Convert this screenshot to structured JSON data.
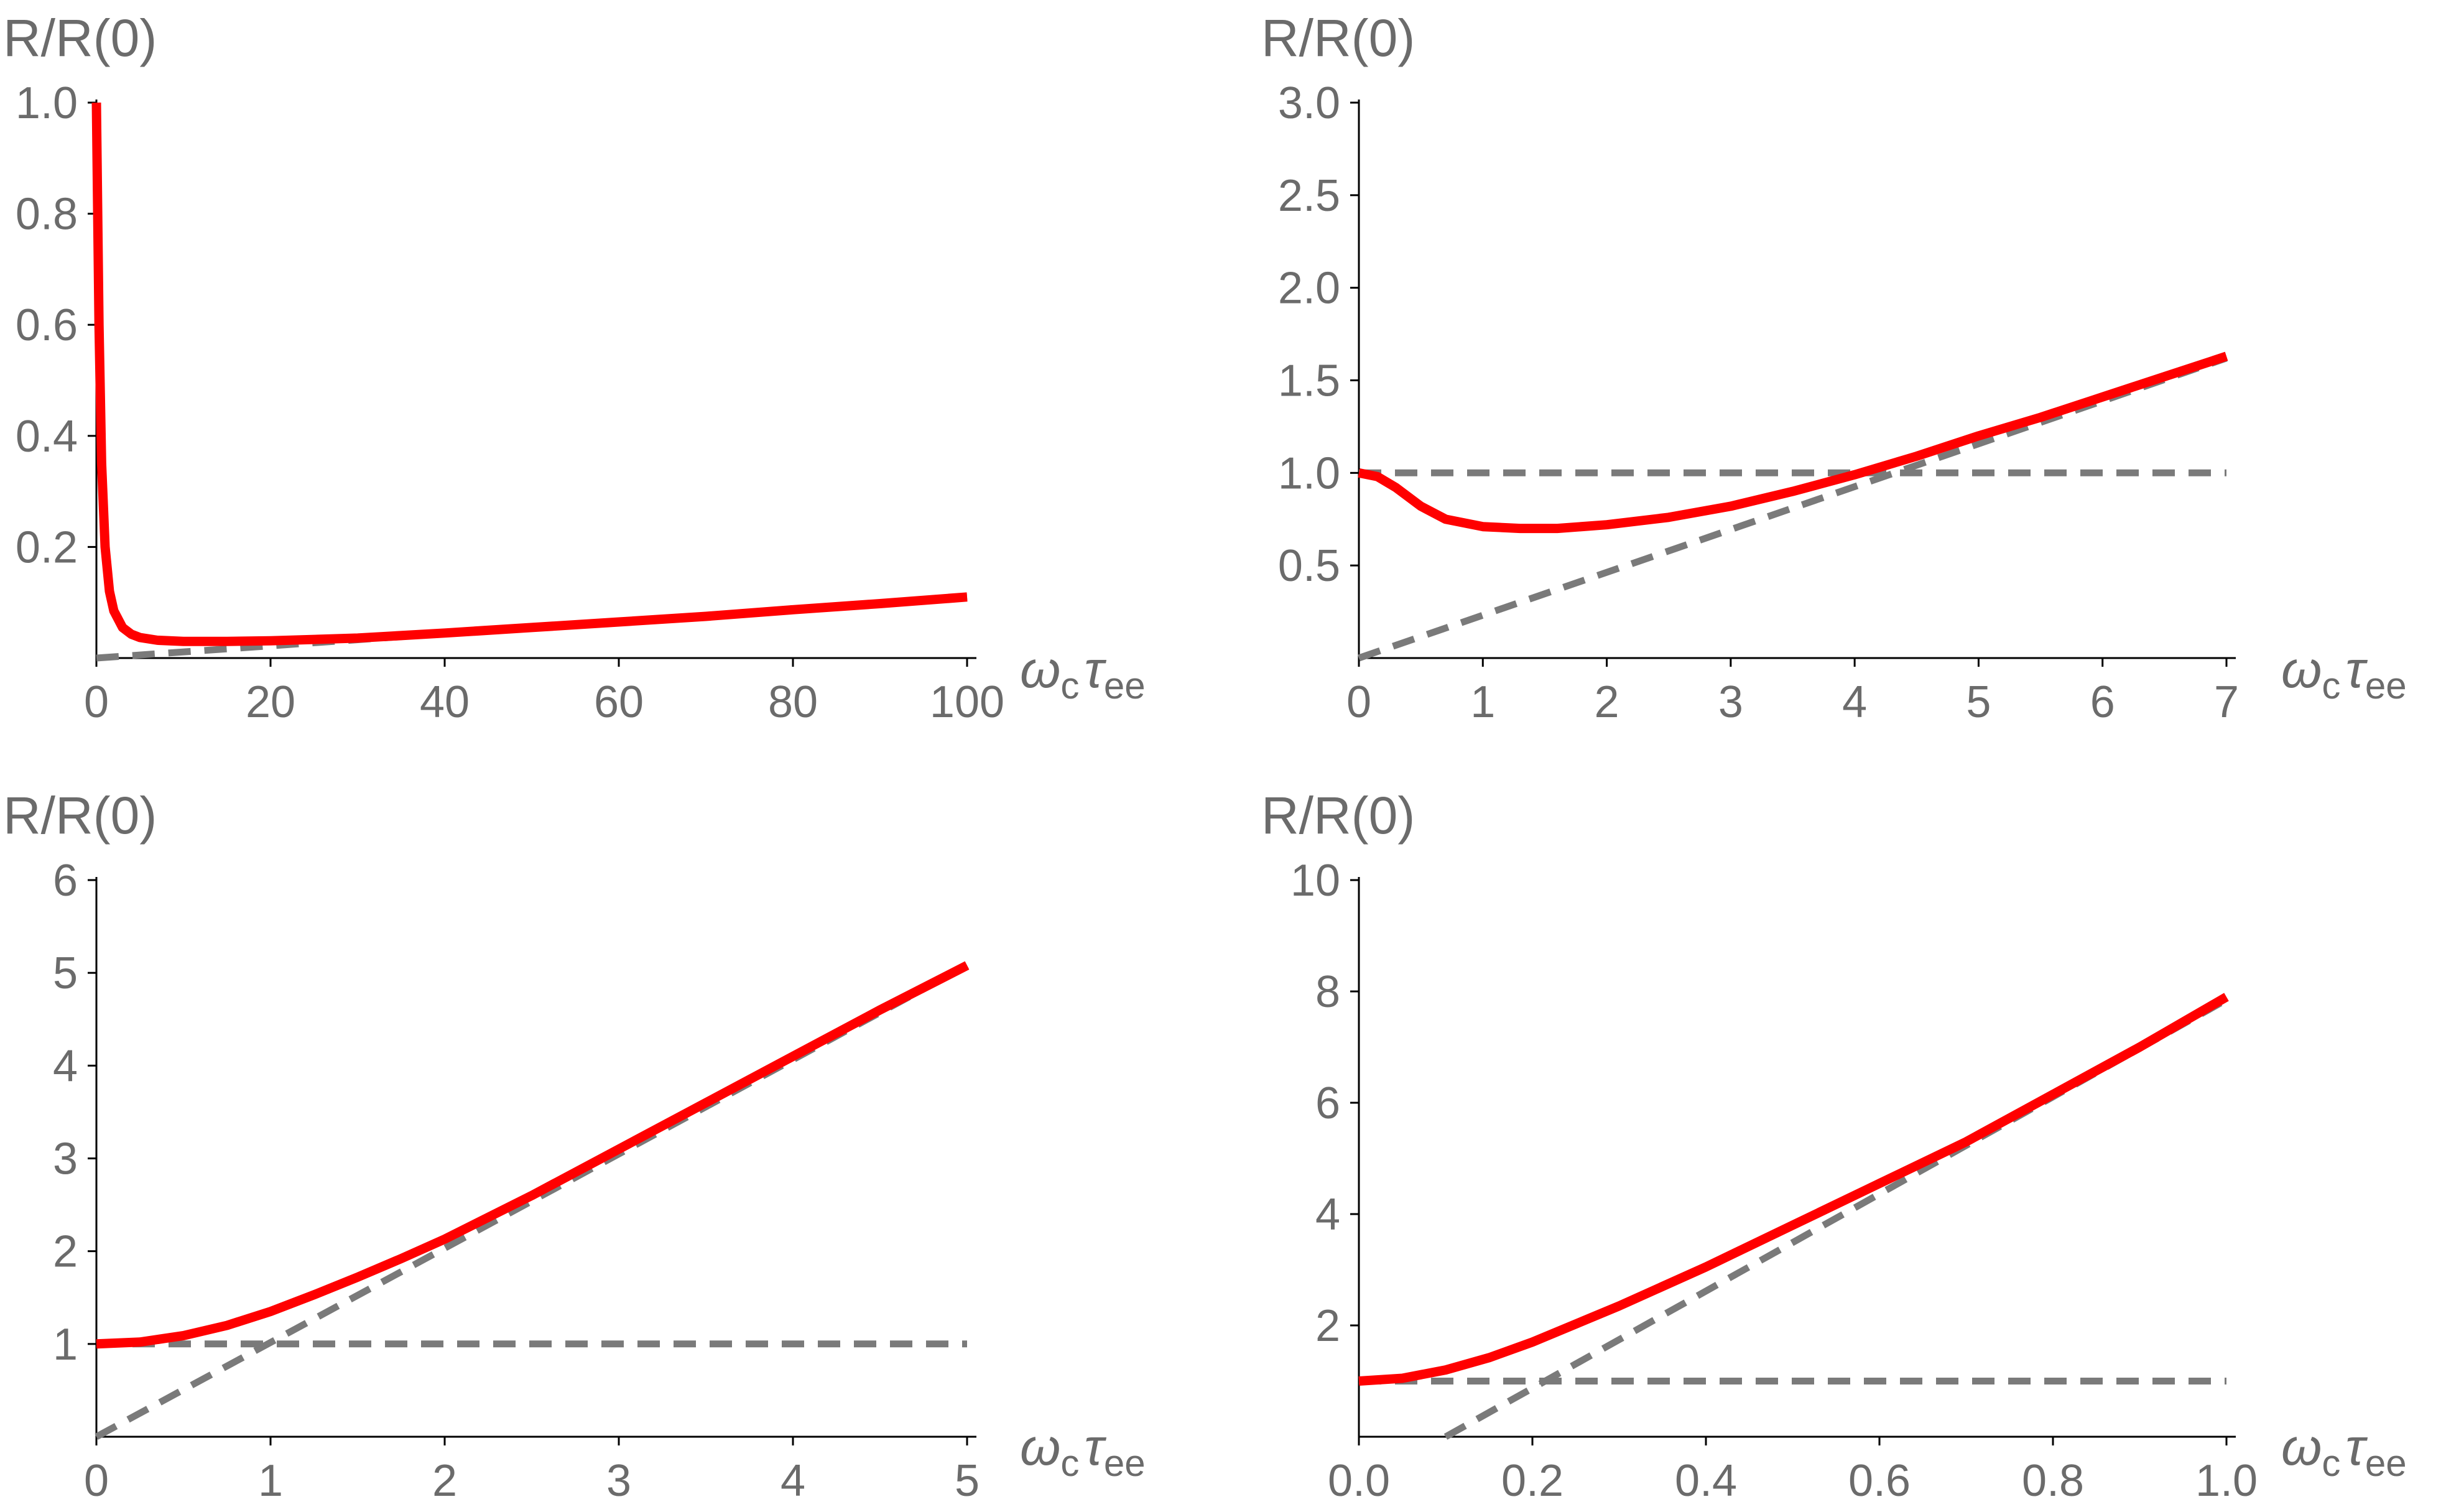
{
  "chart_data": [
    {
      "type": "line",
      "ylabel": "R/R(0)",
      "xlabel": {
        "sym1": "ω",
        "sub1": "c",
        "sym2": "τ",
        "sub2": "ee"
      },
      "xlim": [
        0,
        100
      ],
      "ylim": [
        0,
        1.0
      ],
      "xticks": [
        "0",
        "20",
        "40",
        "60",
        "80",
        "100"
      ],
      "xtick_values": [
        0,
        20,
        40,
        60,
        80,
        100
      ],
      "yticks": [
        "0.2",
        "0.4",
        "0.6",
        "0.8",
        "1.0"
      ],
      "ytick_values": [
        0.2,
        0.4,
        0.6,
        0.8,
        1.0
      ],
      "series": [
        {
          "name": "R/R(0)",
          "style": "solid",
          "color": "#ff0000",
          "x": [
            0,
            0.3,
            0.6,
            1,
            1.5,
            2,
            3,
            4,
            5,
            7,
            10,
            15,
            20,
            30,
            40,
            50,
            60,
            70,
            80,
            90,
            100
          ],
          "values": [
            1.0,
            0.6,
            0.35,
            0.2,
            0.12,
            0.085,
            0.055,
            0.043,
            0.037,
            0.032,
            0.03,
            0.03,
            0.031,
            0.036,
            0.045,
            0.055,
            0.065,
            0.075,
            0.087,
            0.098,
            0.11
          ]
        },
        {
          "name": "asymptote",
          "style": "dashed",
          "color": "#7a7a7a",
          "x": [
            0,
            100
          ],
          "values": [
            0,
            0.11
          ]
        }
      ]
    },
    {
      "type": "line",
      "ylabel": "R/R(0)",
      "xlabel": {
        "sym1": "ω",
        "sub1": "c",
        "sym2": "τ",
        "sub2": "ee"
      },
      "xlim": [
        0,
        7
      ],
      "ylim": [
        0,
        3.0
      ],
      "xticks": [
        "0",
        "1",
        "2",
        "3",
        "4",
        "5",
        "6",
        "7"
      ],
      "xtick_values": [
        0,
        1,
        2,
        3,
        4,
        5,
        6,
        7
      ],
      "yticks": [
        "0.5",
        "1.0",
        "1.5",
        "2.0",
        "2.5",
        "3.0"
      ],
      "ytick_values": [
        0.5,
        1.0,
        1.5,
        2.0,
        2.5,
        3.0
      ],
      "series": [
        {
          "name": "R/R(0)",
          "style": "solid",
          "color": "#ff0000",
          "x": [
            0,
            0.15,
            0.3,
            0.5,
            0.7,
            1.0,
            1.3,
            1.6,
            2.0,
            2.5,
            3.0,
            3.5,
            4.0,
            4.5,
            5.0,
            5.5,
            6.0,
            6.5,
            7.0
          ],
          "values": [
            1.0,
            0.98,
            0.92,
            0.82,
            0.75,
            0.71,
            0.7,
            0.7,
            0.72,
            0.76,
            0.82,
            0.9,
            0.99,
            1.09,
            1.2,
            1.3,
            1.41,
            1.52,
            1.63
          ]
        },
        {
          "name": "linear asymptote",
          "style": "dashed",
          "color": "#7a7a7a",
          "x": [
            0,
            7
          ],
          "values": [
            0,
            1.62
          ]
        },
        {
          "name": "unity",
          "style": "dashed",
          "color": "#7a7a7a",
          "x": [
            0,
            7
          ],
          "values": [
            1.0,
            1.0
          ]
        }
      ]
    },
    {
      "type": "line",
      "ylabel": "R/R(0)",
      "xlabel": {
        "sym1": "ω",
        "sub1": "c",
        "sym2": "τ",
        "sub2": "ee"
      },
      "xlim": [
        0,
        5
      ],
      "ylim": [
        0,
        6
      ],
      "xticks": [
        "0",
        "1",
        "2",
        "3",
        "4",
        "5"
      ],
      "xtick_values": [
        0,
        1,
        2,
        3,
        4,
        5
      ],
      "yticks": [
        "1",
        "2",
        "3",
        "4",
        "5",
        "6"
      ],
      "ytick_values": [
        1,
        2,
        3,
        4,
        5,
        6
      ],
      "series": [
        {
          "name": "R/R(0)",
          "style": "solid",
          "color": "#ff0000",
          "x": [
            0,
            0.25,
            0.5,
            0.75,
            1.0,
            1.25,
            1.5,
            1.75,
            2.0,
            2.5,
            3.0,
            3.5,
            4.0,
            4.5,
            5.0
          ],
          "values": [
            1.0,
            1.02,
            1.09,
            1.2,
            1.35,
            1.53,
            1.72,
            1.92,
            2.13,
            2.6,
            3.1,
            3.6,
            4.1,
            4.6,
            5.08
          ]
        },
        {
          "name": "linear asymptote",
          "style": "dashed",
          "color": "#7a7a7a",
          "x": [
            0,
            5
          ],
          "values": [
            0,
            5.08
          ]
        },
        {
          "name": "unity",
          "style": "dashed",
          "color": "#7a7a7a",
          "x": [
            0,
            5
          ],
          "values": [
            1.0,
            1.0
          ]
        }
      ]
    },
    {
      "type": "line",
      "ylabel": "R/R(0)",
      "xlabel": {
        "sym1": "ω",
        "sub1": "c",
        "sym2": "τ",
        "sub2": "ee"
      },
      "xlim": [
        0,
        1.0
      ],
      "ylim": [
        0,
        10
      ],
      "xticks": [
        "0.0",
        "0.2",
        "0.4",
        "0.6",
        "0.8",
        "1.0"
      ],
      "xtick_values": [
        0,
        0.2,
        0.4,
        0.6,
        0.8,
        1.0
      ],
      "yticks": [
        "2",
        "4",
        "6",
        "8",
        "10"
      ],
      "ytick_values": [
        2,
        4,
        6,
        8,
        10
      ],
      "series": [
        {
          "name": "R/R(0)",
          "style": "solid",
          "color": "#ff0000",
          "x": [
            0,
            0.05,
            0.1,
            0.15,
            0.2,
            0.3,
            0.4,
            0.5,
            0.6,
            0.7,
            0.8,
            0.9,
            1.0
          ],
          "values": [
            1.0,
            1.05,
            1.2,
            1.42,
            1.7,
            2.35,
            3.05,
            3.8,
            4.55,
            5.3,
            6.15,
            7.0,
            7.9
          ]
        },
        {
          "name": "linear asymptote",
          "style": "dashed",
          "color": "#7a7a7a",
          "x": [
            0.1,
            1.0
          ],
          "values": [
            0,
            7.85
          ]
        },
        {
          "name": "unity",
          "style": "dashed",
          "color": "#7a7a7a",
          "x": [
            0,
            1.0
          ],
          "values": [
            1.0,
            1.0
          ]
        }
      ]
    }
  ]
}
